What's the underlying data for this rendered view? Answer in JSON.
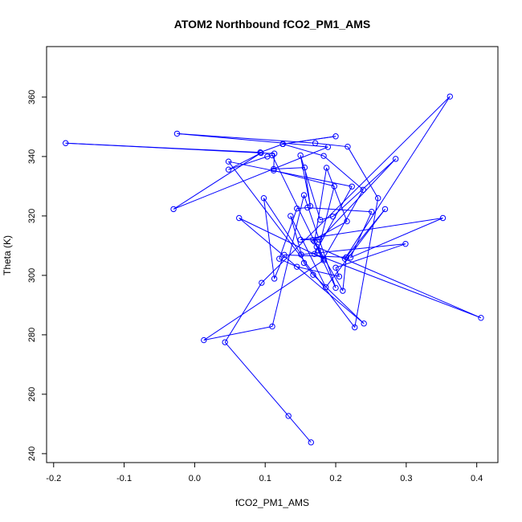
{
  "chart_data": {
    "type": "line",
    "title": "ATOM2 Northbound fCO2_PM1_AMS",
    "xlabel": "fCO2_PM1_AMS",
    "ylabel": "Theta (K)",
    "xlim": [
      -0.21,
      0.43
    ],
    "ylim": [
      237,
      377
    ],
    "xticks": [
      -0.2,
      -0.1,
      0.0,
      0.1,
      0.2,
      0.3,
      0.4
    ],
    "xtick_labels": [
      "-0.2",
      "-0.1",
      "0.0",
      "0.1",
      "0.2",
      "0.3",
      "0.4"
    ],
    "yticks": [
      240,
      260,
      280,
      300,
      320,
      340,
      360
    ],
    "ytick_labels": [
      "240",
      "260",
      "280",
      "300",
      "320",
      "340",
      "360"
    ],
    "grid": false,
    "color": "#0000ff",
    "series": [
      {
        "points": [
          [
            0.165,
            243.8
          ],
          [
            0.133,
            252.7
          ],
          [
            0.043,
            277.5
          ],
          [
            0.095,
            297.5
          ],
          [
            0.362,
            360.2
          ],
          [
            0.213,
            305.6
          ],
          [
            0.27,
            322.3
          ],
          [
            0.186,
            296.0
          ],
          [
            0.136,
            320.0
          ],
          [
            0.155,
            304.2
          ],
          [
            0.168,
            300.2
          ],
          [
            0.24,
            283.8
          ],
          [
            0.063,
            319.3
          ],
          [
            0.183,
            305.6
          ],
          [
            0.239,
            328.8
          ],
          [
            0.183,
            340.2
          ],
          [
            0.125,
            344.2
          ],
          [
            0.125,
            344.2
          ],
          [
            0.2,
            346.8
          ],
          [
            0.125,
            344.2
          ],
          [
            0.093,
            341.4
          ],
          [
            -0.183,
            344.5
          ],
          [
            0.113,
            341.0
          ],
          [
            0.112,
            335.8
          ],
          [
            0.156,
            336.3
          ],
          [
            0.164,
            323.3
          ],
          [
            0.15,
            340.4
          ],
          [
            0.178,
            318.7
          ],
          [
            0.196,
            319.8
          ],
          [
            0.285,
            339.2
          ],
          [
            0.177,
            312.0
          ],
          [
            0.15,
            312.0
          ],
          [
            0.352,
            319.3
          ],
          [
            0.221,
            306.0
          ],
          [
            0.251,
            321.4
          ],
          [
            0.16,
            322.8
          ],
          [
            0.145,
            322.5
          ],
          [
            0.12,
            305.6
          ],
          [
            0.145,
            302.9
          ],
          [
            0.205,
            299.6
          ],
          [
            0.2,
            302.6
          ],
          [
            0.299,
            310.6
          ],
          [
            0.151,
            307.0
          ],
          [
            0.098,
            326.0
          ],
          [
            0.113,
            298.9
          ],
          [
            0.127,
            306.9
          ],
          [
            0.215,
            306.1
          ],
          [
            0.21,
            294.8
          ],
          [
            0.17,
            311.4
          ],
          [
            0.187,
            336.2
          ],
          [
            0.216,
            318.2
          ],
          [
            0.168,
            311.9
          ],
          [
            0.173,
            309.6
          ],
          [
            0.406,
            285.7
          ],
          [
            0.17,
            307.2
          ],
          [
            0.223,
            329.9
          ],
          [
            0.048,
            338.3
          ],
          [
            0.227,
            282.5
          ],
          [
            0.26,
            326.0
          ],
          [
            0.217,
            343.3
          ],
          [
            0.171,
            344.5
          ],
          [
            -0.025,
            347.7
          ],
          [
            0.189,
            343.2
          ],
          [
            -0.03,
            322.3
          ],
          [
            0.094,
            341.2
          ],
          [
            0.048,
            335.6
          ],
          [
            0.103,
            340.0
          ],
          [
            0.11,
            340.4
          ],
          [
            0.183,
            305.1
          ],
          [
            0.013,
            278.2
          ],
          [
            0.11,
            282.8
          ],
          [
            0.155,
            327.0
          ],
          [
            0.2,
            295.8
          ],
          [
            0.175,
            308.4
          ],
          [
            0.198,
            330.0
          ],
          [
            0.112,
            335.3
          ]
        ]
      }
    ]
  }
}
